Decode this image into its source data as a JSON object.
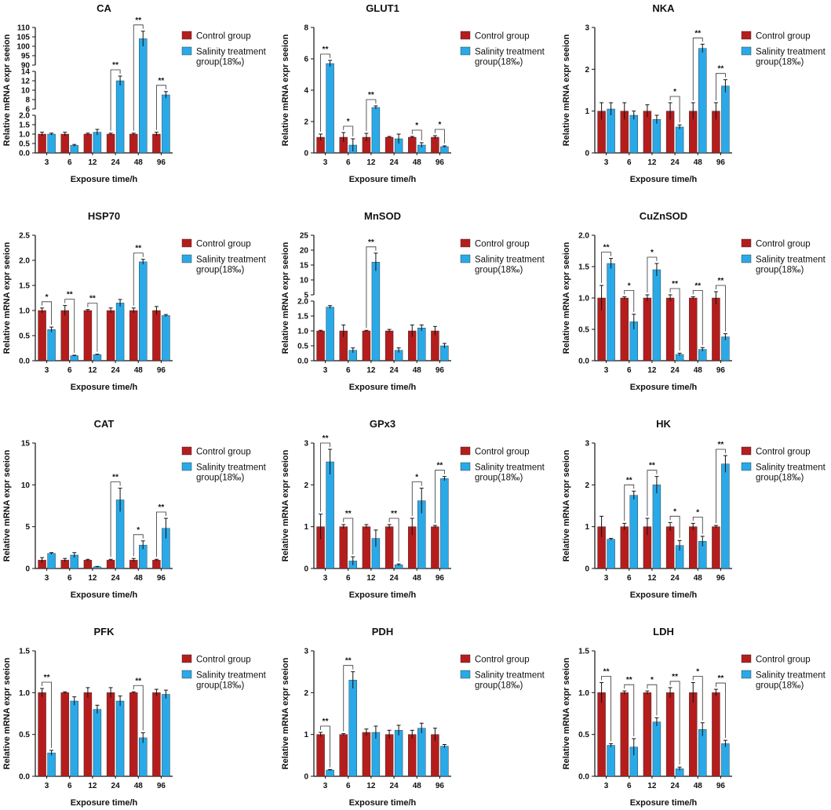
{
  "figure": {
    "xlabel": "Exposure time/h",
    "ylabel": "Relative mRNA expr seeion",
    "categories": [
      "3",
      "6",
      "12",
      "24",
      "48",
      "96"
    ],
    "legend": [
      "Control group",
      "Salinity treatment group(18‰)"
    ],
    "colors": {
      "control": "#b51d1d",
      "treatment": "#2aa9e8"
    }
  },
  "chart_data": [
    {
      "type": "bar",
      "title": "CA",
      "ylim": [
        0,
        110
      ],
      "broken_axis": [
        {
          "range": [
            0,
            2.0
          ],
          "ticks": [
            "0.0",
            "0.5",
            "1.0",
            "1.5",
            "2.0"
          ]
        },
        {
          "range": [
            6,
            14
          ],
          "ticks": [
            "6",
            "8",
            "10",
            "12",
            "14"
          ]
        },
        {
          "range": [
            90,
            110
          ],
          "ticks": [
            "90",
            "95",
            "100",
            "105",
            "110"
          ]
        }
      ],
      "series": [
        {
          "name": "Control group",
          "values": [
            1.0,
            1.0,
            1.0,
            1.0,
            1.0,
            1.0
          ],
          "errors": [
            0.1,
            0.1,
            0.05,
            0.05,
            0.05,
            0.1
          ]
        },
        {
          "name": "Salinity treatment group(18‰)",
          "values": [
            1.0,
            0.4,
            1.1,
            12.0,
            104.0,
            9.0
          ],
          "errors": [
            0.05,
            0.05,
            0.15,
            1.0,
            4.0,
            0.7
          ]
        }
      ],
      "significance": [
        "",
        "",
        "",
        "**",
        "**",
        "**"
      ]
    },
    {
      "type": "bar",
      "title": "GLUT1",
      "ylim": [
        0,
        8
      ],
      "yticks": [
        "0",
        "2",
        "4",
        "6",
        "8"
      ],
      "series": [
        {
          "name": "Control group",
          "values": [
            1.0,
            1.0,
            1.0,
            1.0,
            1.0,
            1.0
          ],
          "errors": [
            0.2,
            0.3,
            0.25,
            0.05,
            0.05,
            0.1
          ]
        },
        {
          "name": "Salinity treatment group(18‰)",
          "values": [
            5.7,
            0.5,
            2.9,
            0.9,
            0.5,
            0.4
          ],
          "errors": [
            0.2,
            0.4,
            0.1,
            0.3,
            0.15,
            0.05
          ]
        }
      ],
      "significance": [
        "**",
        "*",
        "**",
        "",
        "*",
        "*"
      ]
    },
    {
      "type": "bar",
      "title": "NKA",
      "ylim": [
        0,
        3
      ],
      "yticks": [
        "0",
        "1",
        "2",
        "3"
      ],
      "series": [
        {
          "name": "Control group",
          "values": [
            1.0,
            1.0,
            1.0,
            1.0,
            1.0,
            1.0
          ],
          "errors": [
            0.2,
            0.2,
            0.15,
            0.2,
            0.2,
            0.2
          ]
        },
        {
          "name": "Salinity treatment group(18‰)",
          "values": [
            1.05,
            0.9,
            0.8,
            0.62,
            2.5,
            1.6
          ],
          "errors": [
            0.15,
            0.1,
            0.1,
            0.05,
            0.1,
            0.15
          ]
        }
      ],
      "significance": [
        "",
        "",
        "",
        "*",
        "**",
        "**"
      ]
    },
    {
      "type": "bar",
      "title": "HSP70",
      "ylim": [
        0,
        2.5
      ],
      "yticks": [
        "0.0",
        "0.5",
        "1.0",
        "1.5",
        "2.0",
        "2.5"
      ],
      "series": [
        {
          "name": "Control group",
          "values": [
            1.0,
            1.0,
            1.0,
            1.0,
            1.0,
            1.0
          ],
          "errors": [
            0.05,
            0.1,
            0.02,
            0.05,
            0.05,
            0.08
          ]
        },
        {
          "name": "Salinity treatment group(18‰)",
          "values": [
            0.62,
            0.1,
            0.12,
            1.15,
            1.97,
            0.9
          ],
          "errors": [
            0.05,
            0.01,
            0.01,
            0.07,
            0.05,
            0.02
          ]
        }
      ],
      "significance": [
        "*",
        "**",
        "**",
        "",
        "**",
        ""
      ]
    },
    {
      "type": "bar",
      "title": "MnSOD",
      "ylim": [
        0,
        25
      ],
      "broken_axis": [
        {
          "range": [
            0,
            2.0
          ],
          "ticks": [
            "0.0",
            "0.5",
            "1.0",
            "1.5",
            "2.0"
          ]
        },
        {
          "range": [
            5,
            25
          ],
          "ticks": [
            "5",
            "10",
            "15",
            "20",
            "25"
          ]
        }
      ],
      "series": [
        {
          "name": "Control group",
          "values": [
            1.0,
            1.0,
            1.0,
            1.0,
            1.0,
            1.0
          ],
          "errors": [
            0.02,
            0.2,
            0.02,
            0.05,
            0.2,
            0.15
          ]
        },
        {
          "name": "Salinity treatment group(18‰)",
          "values": [
            1.8,
            0.35,
            16.0,
            0.35,
            1.1,
            0.5
          ],
          "errors": [
            0.05,
            0.08,
            3.0,
            0.08,
            0.1,
            0.08
          ]
        }
      ],
      "significance": [
        "",
        "",
        "**",
        "",
        "",
        ""
      ]
    },
    {
      "type": "bar",
      "title": "CuZnSOD",
      "ylim": [
        0,
        2.0
      ],
      "yticks": [
        "0.0",
        "0.5",
        "1.0",
        "1.5",
        "2.0"
      ],
      "series": [
        {
          "name": "Control group",
          "values": [
            1.0,
            1.0,
            1.0,
            1.0,
            1.0,
            1.0
          ],
          "errors": [
            0.2,
            0.02,
            0.05,
            0.05,
            0.02,
            0.1
          ]
        },
        {
          "name": "Salinity treatment group(18‰)",
          "values": [
            1.55,
            0.62,
            1.45,
            0.1,
            0.18,
            0.38
          ],
          "errors": [
            0.08,
            0.12,
            0.1,
            0.02,
            0.03,
            0.05
          ]
        }
      ],
      "significance": [
        "**",
        "*",
        "*",
        "**",
        "**",
        "**"
      ]
    },
    {
      "type": "bar",
      "title": "CAT",
      "ylim": [
        0,
        15
      ],
      "yticks": [
        "0",
        "5",
        "10",
        "15"
      ],
      "series": [
        {
          "name": "Control group",
          "values": [
            1.0,
            1.0,
            1.0,
            1.0,
            1.0,
            1.0
          ],
          "errors": [
            0.3,
            0.2,
            0.1,
            0.1,
            0.2,
            0.1
          ]
        },
        {
          "name": "Salinity treatment group(18‰)",
          "values": [
            1.8,
            1.6,
            0.2,
            8.2,
            2.8,
            4.8
          ],
          "errors": [
            0.1,
            0.3,
            0.05,
            1.4,
            0.5,
            1.2
          ]
        }
      ],
      "significance": [
        "",
        "",
        "",
        "**",
        "*",
        "**"
      ]
    },
    {
      "type": "bar",
      "title": "GPx3",
      "ylim": [
        0,
        3
      ],
      "yticks": [
        "0",
        "1",
        "2",
        "3"
      ],
      "series": [
        {
          "name": "Control group",
          "values": [
            1.0,
            1.0,
            1.0,
            1.0,
            1.0,
            1.0
          ],
          "errors": [
            0.3,
            0.05,
            0.05,
            0.05,
            0.2,
            0.03
          ]
        },
        {
          "name": "Salinity treatment group(18‰)",
          "values": [
            2.55,
            0.18,
            0.72,
            0.09,
            1.62,
            2.15
          ],
          "errors": [
            0.3,
            0.1,
            0.2,
            0.02,
            0.3,
            0.05
          ]
        }
      ],
      "significance": [
        "**",
        "**",
        "",
        "**",
        "*",
        "**"
      ]
    },
    {
      "type": "bar",
      "title": "HK",
      "ylim": [
        0,
        3
      ],
      "yticks": [
        "0",
        "1",
        "2",
        "3"
      ],
      "series": [
        {
          "name": "Control group",
          "values": [
            1.0,
            1.0,
            1.0,
            1.0,
            1.0,
            1.0
          ],
          "errors": [
            0.25,
            0.08,
            0.2,
            0.1,
            0.08,
            0.03
          ]
        },
        {
          "name": "Salinity treatment group(18‰)",
          "values": [
            0.7,
            1.75,
            2.0,
            0.55,
            0.65,
            2.5
          ],
          "errors": [
            0.02,
            0.1,
            0.2,
            0.12,
            0.12,
            0.2
          ]
        }
      ],
      "significance": [
        "",
        "**",
        "**",
        "*",
        "*",
        "**"
      ]
    },
    {
      "type": "bar",
      "title": "PFK",
      "ylim": [
        0,
        1.5
      ],
      "yticks": [
        "0.0",
        "0.5",
        "1.0",
        "1.5"
      ],
      "series": [
        {
          "name": "Control group",
          "values": [
            1.0,
            1.0,
            1.0,
            1.0,
            1.0,
            1.0
          ],
          "errors": [
            0.05,
            0.01,
            0.06,
            0.06,
            0.01,
            0.04
          ]
        },
        {
          "name": "Salinity treatment group(18‰)",
          "values": [
            0.28,
            0.9,
            0.8,
            0.9,
            0.46,
            0.98
          ],
          "errors": [
            0.03,
            0.05,
            0.05,
            0.06,
            0.06,
            0.05
          ]
        }
      ],
      "significance": [
        "**",
        "",
        "",
        "",
        "**",
        ""
      ]
    },
    {
      "type": "bar",
      "title": "PDH",
      "ylim": [
        0,
        3
      ],
      "yticks": [
        "0",
        "1",
        "2",
        "3"
      ],
      "series": [
        {
          "name": "Control group",
          "values": [
            1.0,
            1.0,
            1.05,
            1.0,
            1.0,
            1.0
          ],
          "errors": [
            0.05,
            0.02,
            0.08,
            0.1,
            0.1,
            0.15
          ]
        },
        {
          "name": "Salinity treatment group(18‰)",
          "values": [
            0.15,
            2.3,
            1.05,
            1.1,
            1.15,
            0.72
          ],
          "errors": [
            0.01,
            0.2,
            0.15,
            0.12,
            0.12,
            0.04
          ]
        }
      ],
      "significance": [
        "**",
        "**",
        "",
        "",
        "",
        ""
      ]
    },
    {
      "type": "bar",
      "title": "LDH",
      "ylim": [
        0,
        1.5
      ],
      "yticks": [
        "0.0",
        "0.5",
        "1.0",
        "1.5"
      ],
      "series": [
        {
          "name": "Control group",
          "values": [
            1.0,
            1.0,
            1.0,
            1.0,
            1.0,
            1.0
          ],
          "errors": [
            0.12,
            0.02,
            0.02,
            0.06,
            0.12,
            0.04
          ]
        },
        {
          "name": "Salinity treatment group(18‰)",
          "values": [
            0.37,
            0.35,
            0.65,
            0.09,
            0.56,
            0.39
          ],
          "errors": [
            0.02,
            0.1,
            0.05,
            0.02,
            0.08,
            0.04
          ]
        }
      ],
      "significance": [
        "**",
        "**",
        "*",
        "**",
        "*",
        "**"
      ]
    }
  ]
}
